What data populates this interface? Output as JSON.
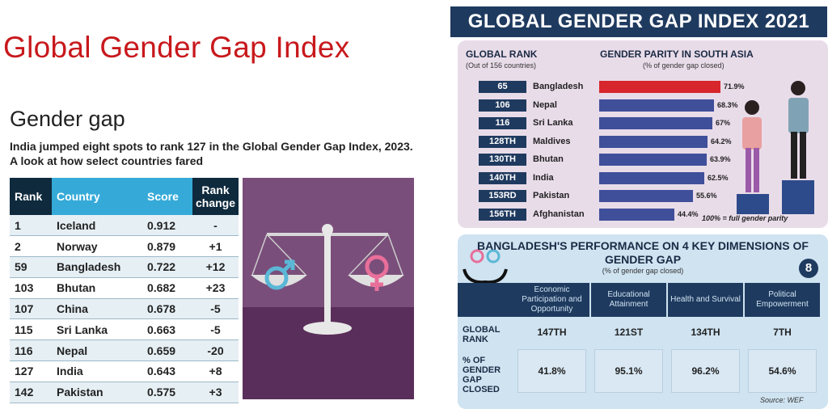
{
  "left": {
    "title": "Global Gender Gap Index",
    "heading": "Gender gap",
    "subtitle": "India jumped eight spots to rank 127 in the Global Gender Gap Index, 2023. A look at how select countries fared",
    "table": {
      "headers": [
        "Rank",
        "Country",
        "Score",
        "Rank change"
      ],
      "rows": [
        [
          "1",
          "Iceland",
          "0.912",
          "-"
        ],
        [
          "2",
          "Norway",
          "0.879",
          "+1"
        ],
        [
          "59",
          "Bangladesh",
          "0.722",
          "+12"
        ],
        [
          "103",
          "Bhutan",
          "0.682",
          "+23"
        ],
        [
          "107",
          "China",
          "0.678",
          "-5"
        ],
        [
          "115",
          "Sri Lanka",
          "0.663",
          "-5"
        ],
        [
          "116",
          "Nepal",
          "0.659",
          "-20"
        ],
        [
          "127",
          "India",
          "0.643",
          "+8"
        ],
        [
          "142",
          "Pakistan",
          "0.575",
          "+3"
        ]
      ]
    }
  },
  "right": {
    "header": "GLOBAL GENDER GAP INDEX 2021",
    "rank_label": "GLOBAL RANK",
    "rank_sub": "(Out of 156 countries)",
    "parity_label": "GENDER PARITY IN SOUTH ASIA",
    "parity_sub": "(% of gender gap closed)",
    "note": "100% = full gender parity",
    "perf_title": "BANGLADESH'S PERFORMANCE ON 4 KEY DIMENSIONS OF GENDER GAP",
    "perf_sub": "(% of gender gap closed)",
    "perf_row1": "GLOBAL RANK",
    "perf_row2": "% OF GENDER GAP CLOSED",
    "source": "Source: WEF",
    "logo": "8"
  },
  "chart_data": [
    {
      "type": "bar",
      "title": "GENDER PARITY IN SOUTH ASIA",
      "subtitle": "(% of gender gap closed)",
      "ranks": [
        "65",
        "106",
        "116",
        "128TH",
        "130TH",
        "140TH",
        "153RD",
        "156TH"
      ],
      "categories": [
        "Bangladesh",
        "Nepal",
        "Sri Lanka",
        "Maldives",
        "Bhutan",
        "India",
        "Pakistan",
        "Afghanistan"
      ],
      "values": [
        71.9,
        68.3,
        67,
        64.2,
        63.9,
        62.5,
        55.6,
        44.4
      ],
      "value_labels": [
        "71.9%",
        "68.3%",
        "67%",
        "64.2%",
        "63.9%",
        "62.5%",
        "55.6%",
        "44.4%"
      ],
      "colors": {
        "highlight": "#d7262c",
        "default": "#3f4f9a"
      }
    },
    {
      "type": "table",
      "title": "BANGLADESH'S PERFORMANCE ON 4 KEY DIMENSIONS OF GENDER GAP",
      "columns": [
        "Economic Participation and Opportunity",
        "Educational Attainment",
        "Health and Survival",
        "Political Empowerment"
      ],
      "global_rank": [
        "147TH",
        "121ST",
        "134TH",
        "7TH"
      ],
      "gap_closed": [
        "41.8%",
        "95.1%",
        "96.2%",
        "54.6%"
      ]
    }
  ]
}
